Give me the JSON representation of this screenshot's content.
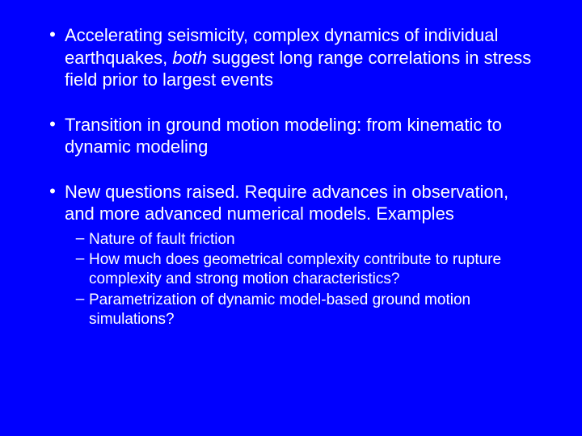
{
  "background_color": "#0000ff",
  "text_color": "#ffffff",
  "font_family": "Arial",
  "main_bullets": [
    {
      "pre": "Accelerating seismicity, complex dynamics of individual earthquakes, ",
      "italic": "both",
      "post": " suggest long range correlations in stress field prior to largest events"
    },
    {
      "pre": "Transition in ground motion modeling: from kinematic to dynamic modeling",
      "italic": "",
      "post": ""
    },
    {
      "pre": "New questions raised. Require advances in observation, and more advanced numerical models. Examples",
      "italic": "",
      "post": ""
    }
  ],
  "sub_bullets": [
    "Nature of fault friction",
    "How much does geometrical complexity contribute to rupture complexity and strong motion characteristics?",
    "Parametrization of dynamic model-based ground motion simulations?"
  ],
  "main_font_size": 22,
  "sub_font_size": 19
}
